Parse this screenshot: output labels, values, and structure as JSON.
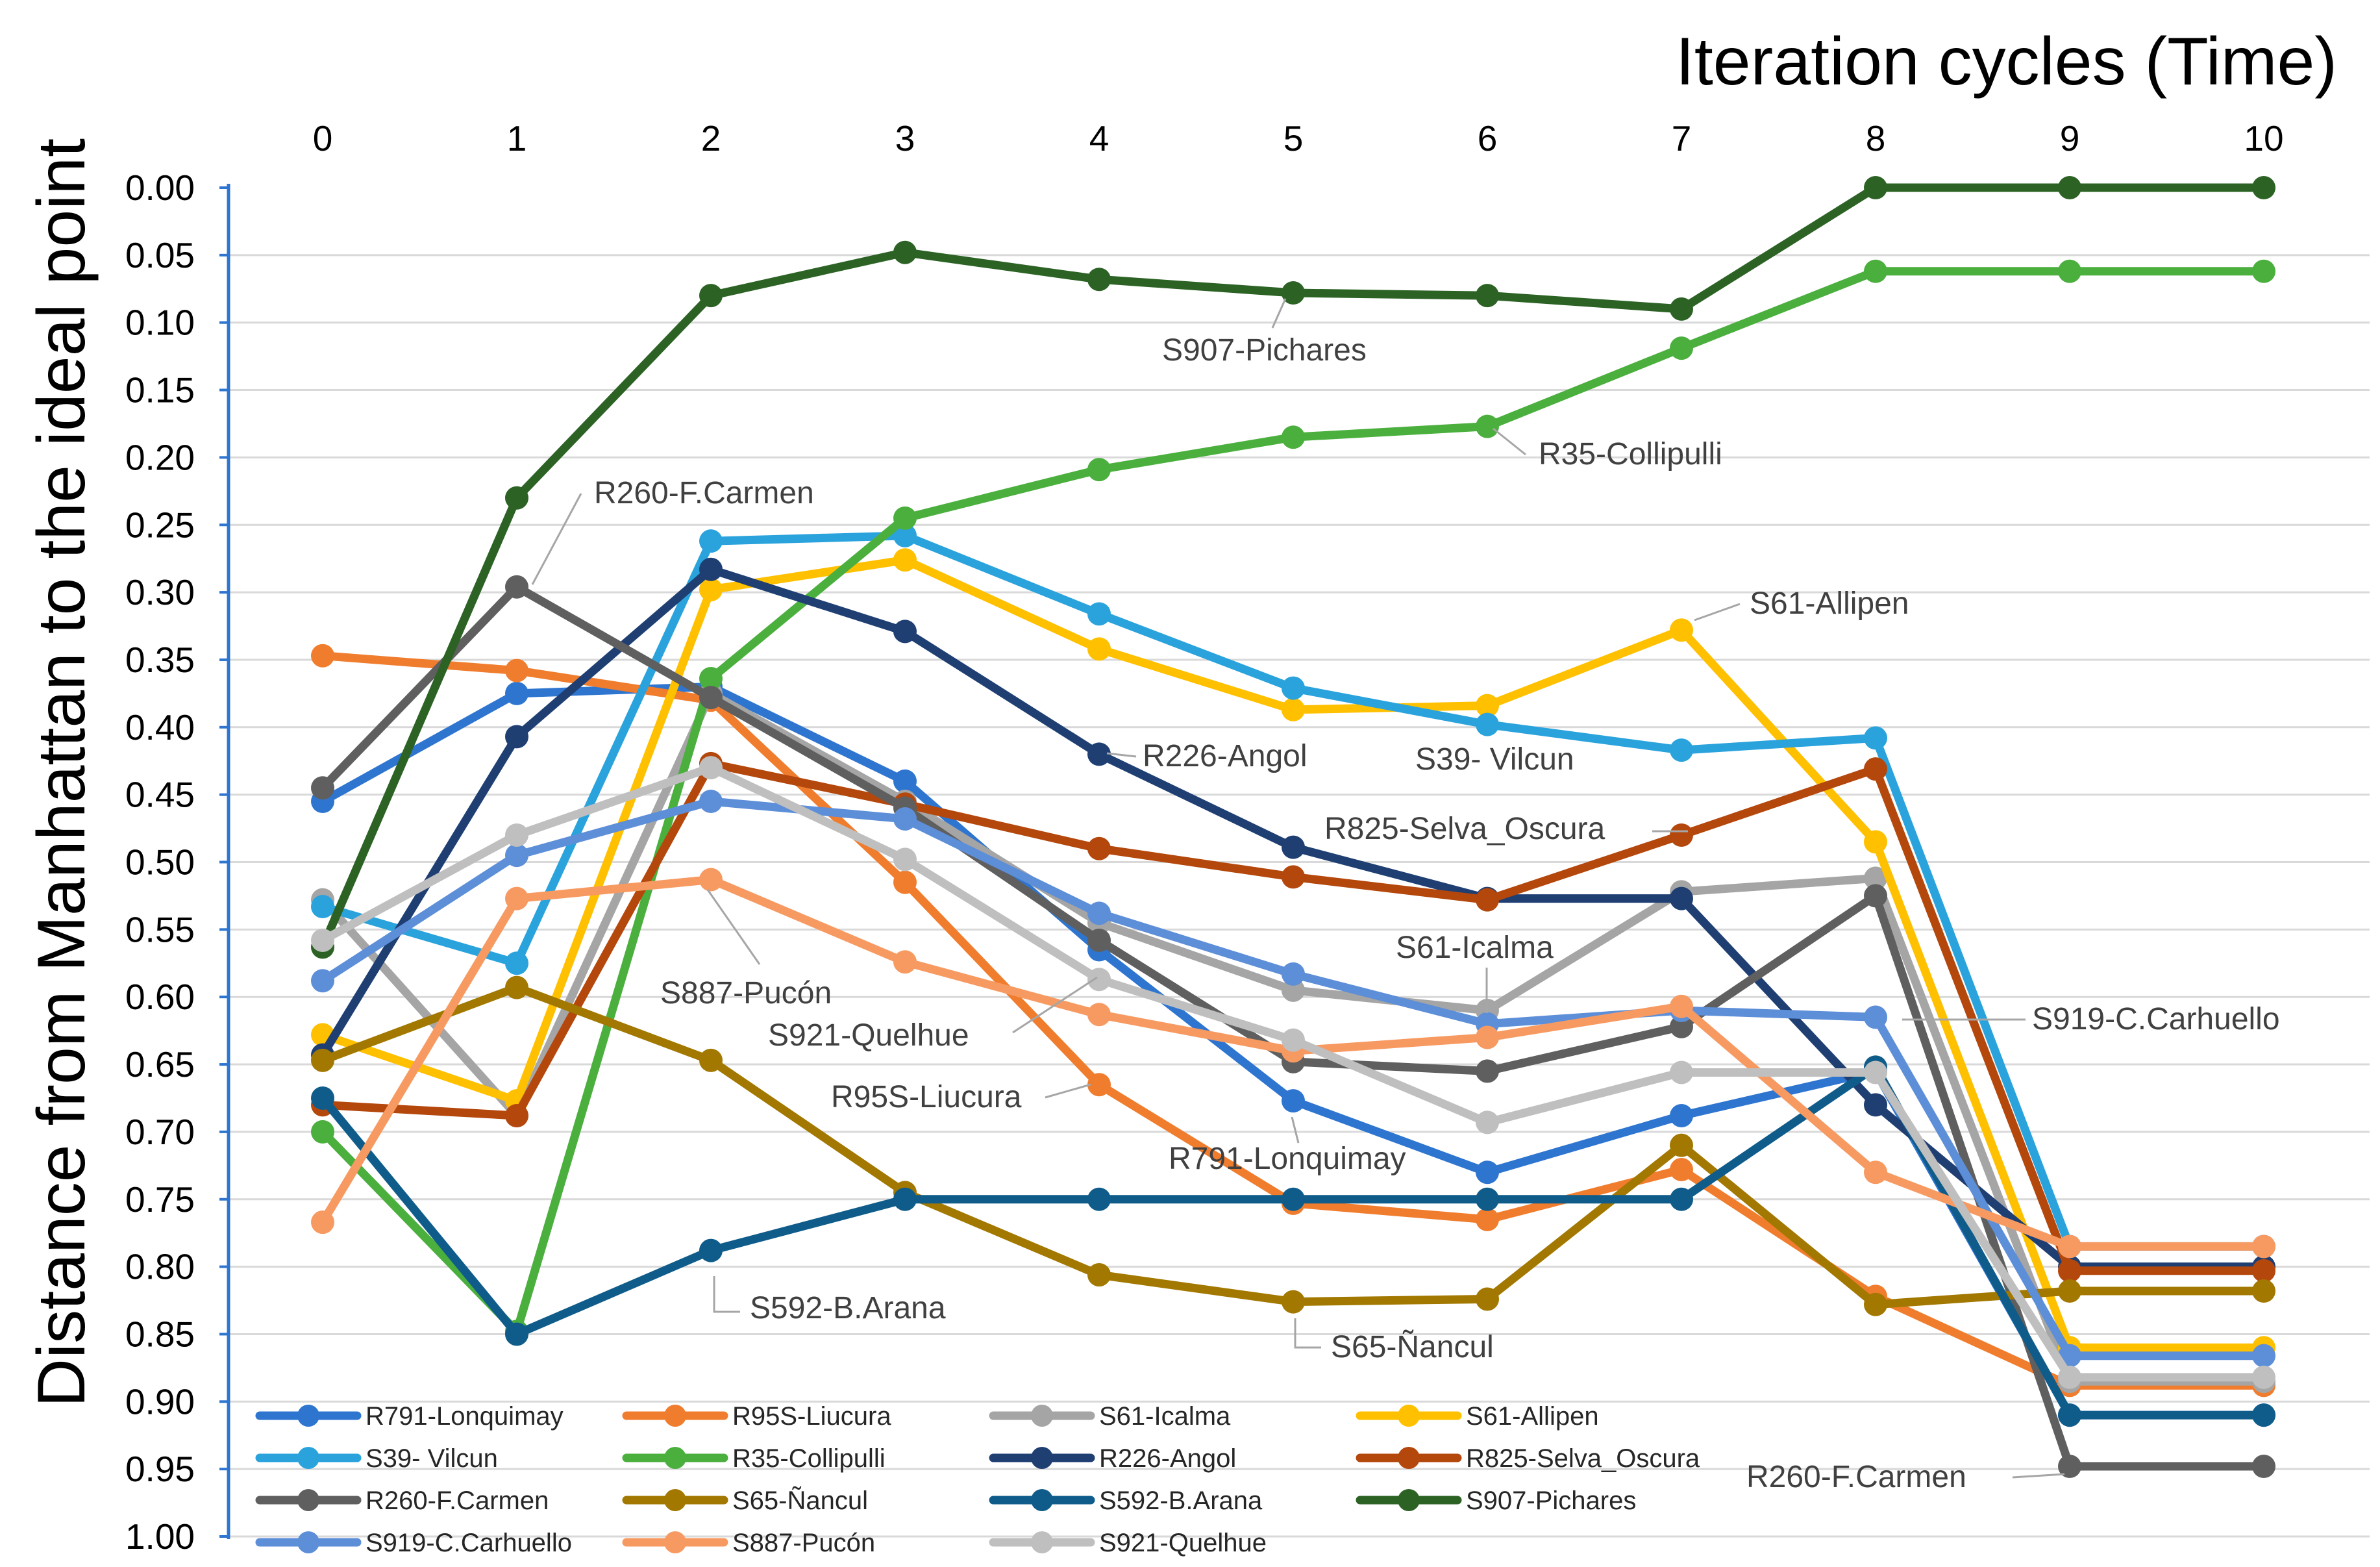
{
  "chart_data": {
    "type": "line",
    "title": "",
    "xlabel": "Iteration cycles (Time)",
    "ylabel": "Distance from Manhattan to the ideal point",
    "x_axis_position": "top",
    "y_axis_reversed": true,
    "x": [
      0,
      1,
      2,
      3,
      4,
      5,
      6,
      7,
      8,
      9,
      10
    ],
    "x_tick_labels": [
      "0",
      "1",
      "2",
      "3",
      "4",
      "5",
      "6",
      "7",
      "8",
      "9",
      "10"
    ],
    "ylim": [
      0,
      1
    ],
    "y_tick_labels": [
      "0.00",
      "0.05",
      "0.10",
      "0.15",
      "0.20",
      "0.25",
      "0.30",
      "0.35",
      "0.40",
      "0.45",
      "0.50",
      "0.55",
      "0.60",
      "0.65",
      "0.70",
      "0.75",
      "0.80",
      "0.85",
      "0.90",
      "0.95",
      "1.00"
    ],
    "grid": true,
    "legend_position": "bottom",
    "series": [
      {
        "name": "R791-Lonquimay",
        "color": "#2E75D0",
        "values": [
          0.455,
          0.375,
          0.37,
          0.44,
          0.565,
          0.677,
          0.73,
          0.688,
          0.655,
          0.91,
          0.91
        ]
      },
      {
        "name": "R95S-Liucura",
        "color": "#F07D2E",
        "values": [
          0.347,
          0.358,
          0.38,
          0.515,
          0.665,
          0.753,
          0.765,
          0.728,
          0.822,
          0.888,
          0.888
        ]
      },
      {
        "name": "S61-Icalma",
        "color": "#A5A5A5",
        "values": [
          0.528,
          0.688,
          0.375,
          0.455,
          0.545,
          0.595,
          0.61,
          0.522,
          0.512,
          0.885,
          0.885
        ]
      },
      {
        "name": "S61-Allipen",
        "color": "#FFC000",
        "values": [
          0.628,
          0.677,
          0.298,
          0.276,
          0.342,
          0.387,
          0.384,
          0.328,
          0.485,
          0.86,
          0.86
        ]
      },
      {
        "name": "S39- Vilcun",
        "color": "#2AA3DD",
        "values": [
          0.533,
          0.575,
          0.262,
          0.258,
          0.316,
          0.371,
          0.398,
          0.417,
          0.408,
          0.785,
          0.785
        ]
      },
      {
        "name": "R35-Collipulli",
        "color": "#4BAF3E",
        "values": [
          0.7,
          0.848,
          0.364,
          0.245,
          0.209,
          0.185,
          0.177,
          0.119,
          0.062,
          0.062,
          0.062
        ]
      },
      {
        "name": "R226-Angol",
        "color": "#1F3F73",
        "values": [
          0.643,
          0.407,
          0.283,
          0.329,
          0.42,
          0.489,
          0.527,
          0.527,
          0.68,
          0.8,
          0.8
        ]
      },
      {
        "name": "R825-Selva_Oscura",
        "color": "#B4470C",
        "values": [
          0.68,
          0.688,
          0.427,
          0.457,
          0.49,
          0.511,
          0.528,
          0.48,
          0.431,
          0.803,
          0.803
        ]
      },
      {
        "name": "R260-F.Carmen",
        "color": "#5F5F5F",
        "values": [
          0.445,
          0.296,
          0.378,
          0.46,
          0.558,
          0.648,
          0.655,
          0.622,
          0.525,
          0.948,
          0.948
        ]
      },
      {
        "name": "S65-Ñancul",
        "color": "#A27800",
        "values": [
          0.647,
          0.593,
          0.647,
          0.745,
          0.806,
          0.826,
          0.824,
          0.71,
          0.828,
          0.818,
          0.818
        ]
      },
      {
        "name": "S592-B.Arana",
        "color": "#0F5C8A",
        "values": [
          0.675,
          0.85,
          0.788,
          0.75,
          0.75,
          0.75,
          0.75,
          0.75,
          0.652,
          0.91,
          0.91
        ]
      },
      {
        "name": "S907-Pichares",
        "color": "#2C6325",
        "values": [
          0.563,
          0.23,
          0.08,
          0.048,
          0.068,
          0.078,
          0.08,
          0.09,
          0.0,
          0.0,
          0.0
        ]
      },
      {
        "name": "S919-C.Carhuello",
        "color": "#5D8ED8",
        "values": [
          0.588,
          0.495,
          0.455,
          0.468,
          0.538,
          0.583,
          0.62,
          0.61,
          0.615,
          0.866,
          0.866
        ]
      },
      {
        "name": "S887-Pucón",
        "color": "#F79A62",
        "values": [
          0.767,
          0.527,
          0.513,
          0.574,
          0.613,
          0.64,
          0.63,
          0.607,
          0.73,
          0.785,
          0.785
        ]
      },
      {
        "name": "S921-Quelhue",
        "color": "#BFBFBF",
        "values": [
          0.558,
          0.48,
          0.43,
          0.498,
          0.587,
          0.632,
          0.693,
          0.656,
          0.656,
          0.882,
          0.882
        ]
      }
    ],
    "annotations": [
      {
        "text": "S907-Pichares",
        "series": "S907-Pichares",
        "x": 5
      },
      {
        "text": "R35-Collipulli",
        "series": "R35-Collipulli",
        "x": 6
      },
      {
        "text": "R260-F.Carmen",
        "series": "R260-F.Carmen",
        "x": 1
      },
      {
        "text": "S61-Allipen",
        "series": "S61-Allipen",
        "x": 7
      },
      {
        "text": "R226-Angol",
        "series": "R226-Angol",
        "x": 4
      },
      {
        "text": "S39- Vilcun",
        "series": "S39- Vilcun",
        "x": 6
      },
      {
        "text": "R825-Selva_Oscura",
        "series": "R825-Selva_Oscura",
        "x": 7
      },
      {
        "text": "S61-Icalma",
        "series": "S61-Icalma",
        "x": 6
      },
      {
        "text": "S887-Pucón",
        "series": "S887-Pucón",
        "x": 2
      },
      {
        "text": "S921-Quelhue",
        "series": "S921-Quelhue",
        "x": 4
      },
      {
        "text": "S919-C.Carhuello",
        "series": "S919-C.Carhuello",
        "x": 8
      },
      {
        "text": "R95S-Liucura",
        "series": "R95S-Liucura",
        "x": 4
      },
      {
        "text": "R791-Lonquimay",
        "series": "R791-Lonquimay",
        "x": 5
      },
      {
        "text": "S592-B.Arana",
        "series": "S592-B.Arana",
        "x": 2
      },
      {
        "text": "S65-Ñancul",
        "series": "S65-Ñancul",
        "x": 6
      },
      {
        "text": "R260-F.Carmen",
        "series": "R260-F.Carmen",
        "x": 10
      }
    ]
  }
}
